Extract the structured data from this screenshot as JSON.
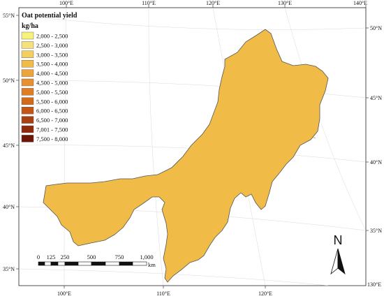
{
  "legend": {
    "title": "Oat potential yield",
    "unit": "kg/ha",
    "classes": [
      {
        "label": "2,000 - 2,500",
        "color": "#f6f27a"
      },
      {
        "label": "2,500 - 3,000",
        "color": "#f6e07a"
      },
      {
        "label": "3,000 - 3,500",
        "color": "#f3cf5e"
      },
      {
        "label": "3,500 - 4,000",
        "color": "#f1bb47"
      },
      {
        "label": "4,000 - 4,500",
        "color": "#eea43a"
      },
      {
        "label": "4,500 - 5,000",
        "color": "#e9902e"
      },
      {
        "label": "5,000 - 5,500",
        "color": "#e07d23"
      },
      {
        "label": "5,500 - 6,000",
        "color": "#d46b1a"
      },
      {
        "label": "6,000 - 6,500",
        "color": "#c35614"
      },
      {
        "label": "6,500 - 7,000",
        "color": "#a9400f"
      },
      {
        "label": "7,001 - 7,500",
        "color": "#8e2a0b"
      },
      {
        "label": "7,500 - 8,000",
        "color": "#6e1507"
      }
    ]
  },
  "graticule": {
    "top": [
      "100°E",
      "110°E",
      "120°E",
      "130°E",
      "140°E"
    ],
    "bottom": [
      "100°E",
      "110°E",
      "120°E"
    ],
    "left": [
      "55°N",
      "50°N",
      "45°N",
      "40°N",
      "35°N"
    ],
    "right": [
      "50°N",
      "45°N",
      "40°N",
      "35°N"
    ],
    "right_bottom": "130°E"
  },
  "scale_bar": {
    "ticks": [
      "0",
      "125",
      "250",
      "500",
      "750",
      "1,000"
    ],
    "unit": "km"
  },
  "north_arrow": {
    "label": "N"
  }
}
